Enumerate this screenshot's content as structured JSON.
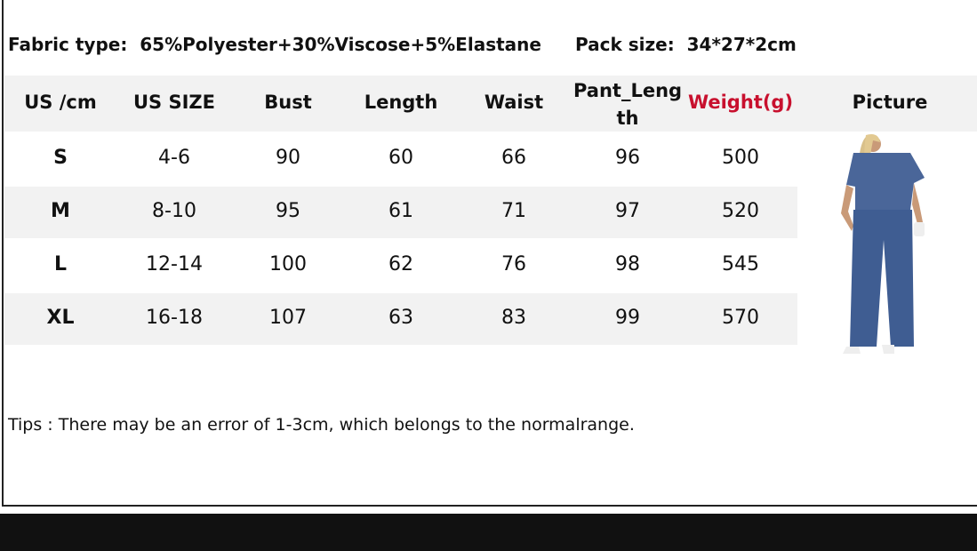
{
  "fabric": {
    "label": "Fabric type:",
    "value": "65%Polyester+30%Viscose+5%Elastane"
  },
  "pack": {
    "label": "Pack size:",
    "value": "34*27*2cm"
  },
  "headers": [
    "US /cm",
    "US SIZE",
    "Bust",
    "Length",
    "Waist",
    "Pant_Leng\nth",
    "Weight(g)",
    "Picture"
  ],
  "accent_color": "#c8102e",
  "rows": [
    [
      "S",
      "4-6",
      "90",
      "60",
      "66",
      "96",
      "500"
    ],
    [
      "M",
      "8-10",
      "95",
      "61",
      "71",
      "97",
      "520"
    ],
    [
      "L",
      "12-14",
      "100",
      "62",
      "76",
      "98",
      "545"
    ],
    [
      "XL",
      "16-18",
      "107",
      "63",
      "83",
      "99",
      "570"
    ]
  ],
  "tips": "Tips : There may be an error of 1-3cm, which belongs to the normalrange.",
  "picture": "product-photo-blue-ribbed-tshirt-and-wide-leg-pants-set"
}
